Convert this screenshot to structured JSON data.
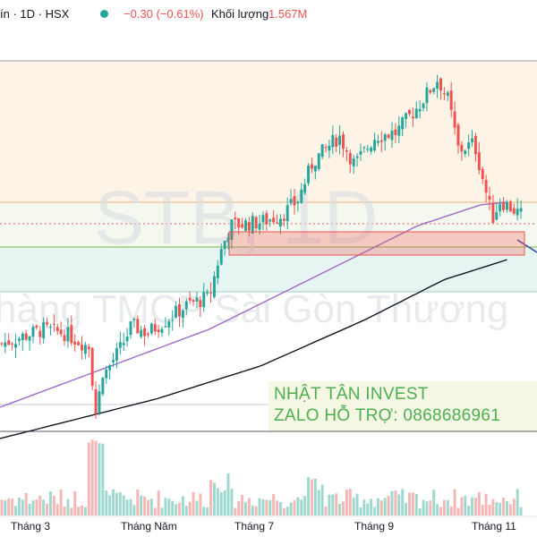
{
  "header": {
    "symbol_fragment": "ín · 1D · HSX",
    "status_dot_color": "#26a69a",
    "change": "−0.30 (−0.61%)",
    "volume_label": "Khối lượng",
    "volume_value": "1.567M"
  },
  "watermark": {
    "ticker": "STB, 1D",
    "company": "hàng TMCP Sài Gòn Thương"
  },
  "promo": {
    "line1": "NHẬT TÂN INVEST",
    "line2": "ZALO HỖ TRỢ: 0868686961"
  },
  "colors": {
    "up": "#26a69a",
    "down": "#ef5350",
    "ma_purple": "#9c6bc8",
    "ma_black": "#131722",
    "zone_box": "#ef5350"
  },
  "chart_data": {
    "type": "candlestick",
    "x_tick_labels": [
      "Tháng 3",
      "Tháng Năm",
      "Tháng 7",
      "Tháng 9",
      "Tháng 11"
    ],
    "legend": "top-left",
    "grid": false,
    "ohlc_waypoints": [
      {
        "t": 0,
        "close": 0.22
      },
      {
        "t": 0.04,
        "close": 0.24
      },
      {
        "t": 0.08,
        "close": 0.26
      },
      {
        "t": 0.12,
        "close": 0.25
      },
      {
        "t": 0.17,
        "close": 0.21
      },
      {
        "t": 0.18,
        "close": 0.02
      },
      {
        "t": 0.2,
        "close": 0.14
      },
      {
        "t": 0.23,
        "close": 0.21
      },
      {
        "t": 0.25,
        "close": 0.27
      },
      {
        "t": 0.28,
        "close": 0.25
      },
      {
        "t": 0.33,
        "close": 0.3
      },
      {
        "t": 0.36,
        "close": 0.33
      },
      {
        "t": 0.4,
        "close": 0.35
      },
      {
        "t": 0.42,
        "close": 0.47
      },
      {
        "t": 0.44,
        "close": 0.55
      },
      {
        "t": 0.5,
        "close": 0.56
      },
      {
        "t": 0.54,
        "close": 0.58
      },
      {
        "t": 0.57,
        "close": 0.62
      },
      {
        "t": 0.6,
        "close": 0.73
      },
      {
        "t": 0.65,
        "close": 0.8
      },
      {
        "t": 0.68,
        "close": 0.72
      },
      {
        "t": 0.72,
        "close": 0.8
      },
      {
        "t": 0.76,
        "close": 0.81
      },
      {
        "t": 0.8,
        "close": 0.88
      },
      {
        "t": 0.84,
        "close": 0.96
      },
      {
        "t": 0.86,
        "close": 0.9
      },
      {
        "t": 0.88,
        "close": 0.76
      },
      {
        "t": 0.91,
        "close": 0.78
      },
      {
        "t": 0.93,
        "close": 0.66
      },
      {
        "t": 0.945,
        "close": 0.57
      },
      {
        "t": 0.96,
        "close": 0.62
      },
      {
        "t": 1,
        "close": 0.58
      }
    ],
    "ma_purple_waypoints": [
      {
        "t": 0.0,
        "v": 0.0
      },
      {
        "t": 0.2,
        "v": 0.15
      },
      {
        "t": 0.4,
        "v": 0.3
      },
      {
        "t": 0.6,
        "v": 0.5
      },
      {
        "t": 0.8,
        "v": 0.7
      },
      {
        "t": 0.92,
        "v": 0.78
      },
      {
        "t": 0.97,
        "v": 0.79
      }
    ],
    "ma_black_waypoints": [
      {
        "t": 0.0,
        "v": 0.0
      },
      {
        "t": 0.3,
        "v": 0.12
      },
      {
        "t": 0.5,
        "v": 0.22
      },
      {
        "t": 0.7,
        "v": 0.36
      },
      {
        "t": 0.85,
        "v": 0.48
      },
      {
        "t": 0.97,
        "v": 0.54
      }
    ]
  }
}
